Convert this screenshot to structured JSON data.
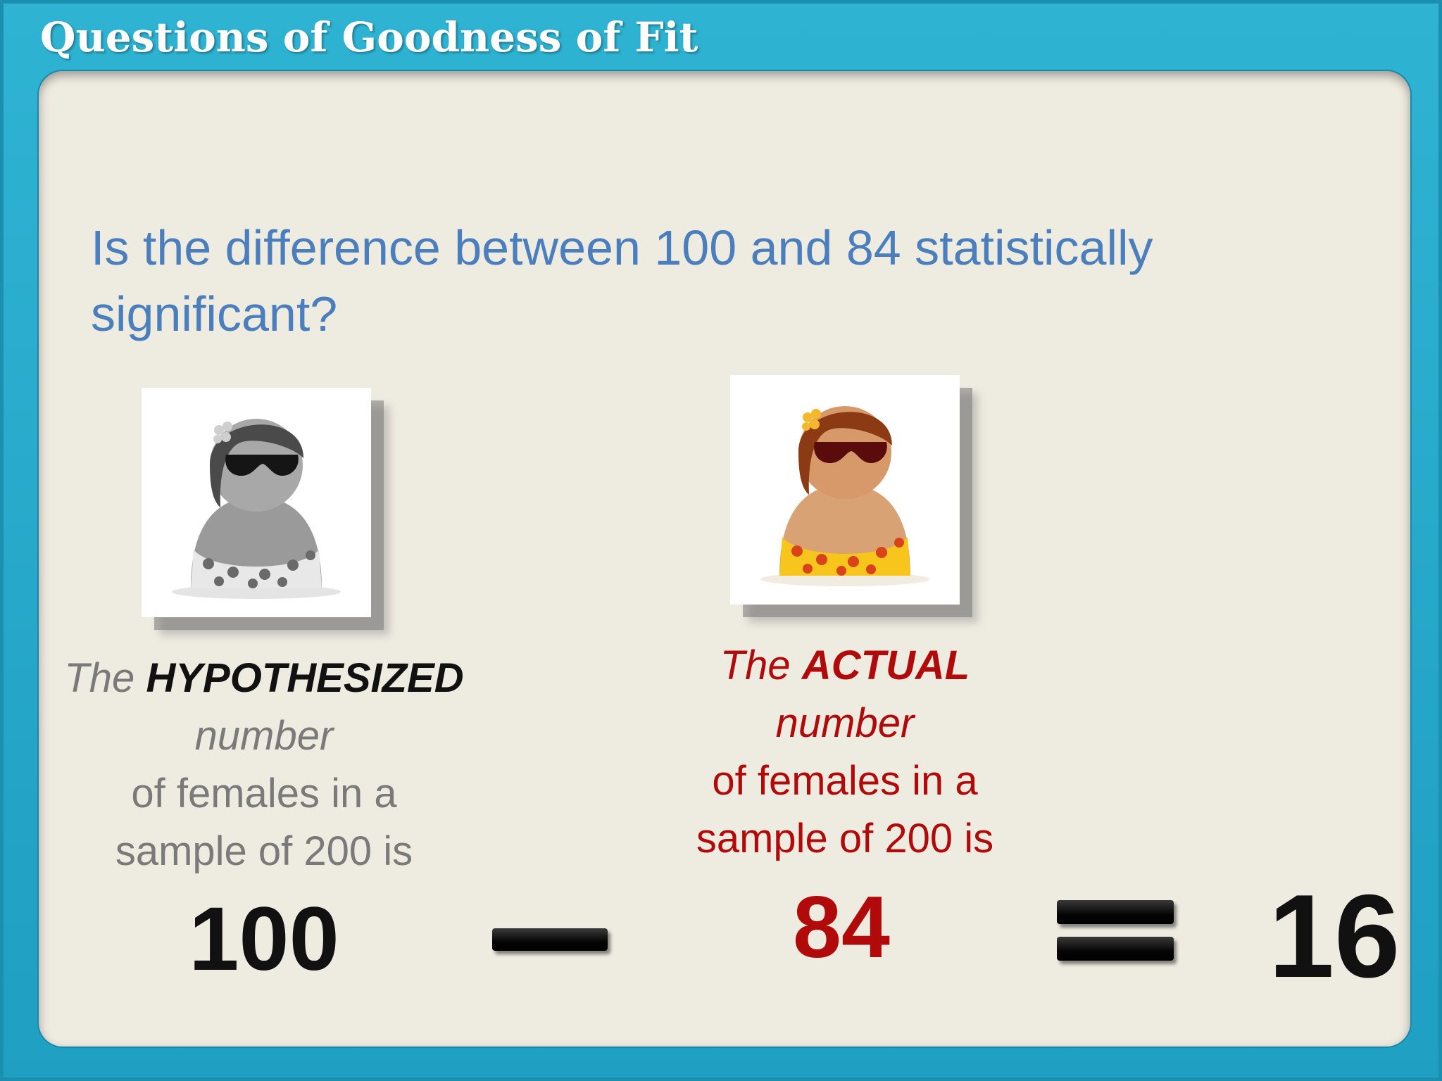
{
  "slide": {
    "title": "Questions of Goodness of Fit",
    "question_line1": "Is the difference between 100 and 84 statistically",
    "question_line2": "significant?"
  },
  "hypothesized": {
    "prefix": "The",
    "emphasis": "HYPOTHESIZED",
    "word": "number",
    "line3": "of females in a",
    "line4": "sample of 200 is",
    "value": "100"
  },
  "actual": {
    "prefix": "The",
    "emphasis": "ACTUAL",
    "word": "number",
    "line3": "of females in a",
    "line4": "sample of 200 is",
    "value": "84"
  },
  "result": {
    "value": "16"
  },
  "colors": {
    "frame": "#2aa9c9",
    "panel": "#eeebe1",
    "question": "#4a7ebd",
    "actual_red": "#b10a0a",
    "hyp_gray": "#7a7a7a"
  },
  "icons": {
    "hypothesized_image": "woman-sunglasses-grayscale-icon",
    "actual_image": "woman-sunglasses-color-icon"
  }
}
